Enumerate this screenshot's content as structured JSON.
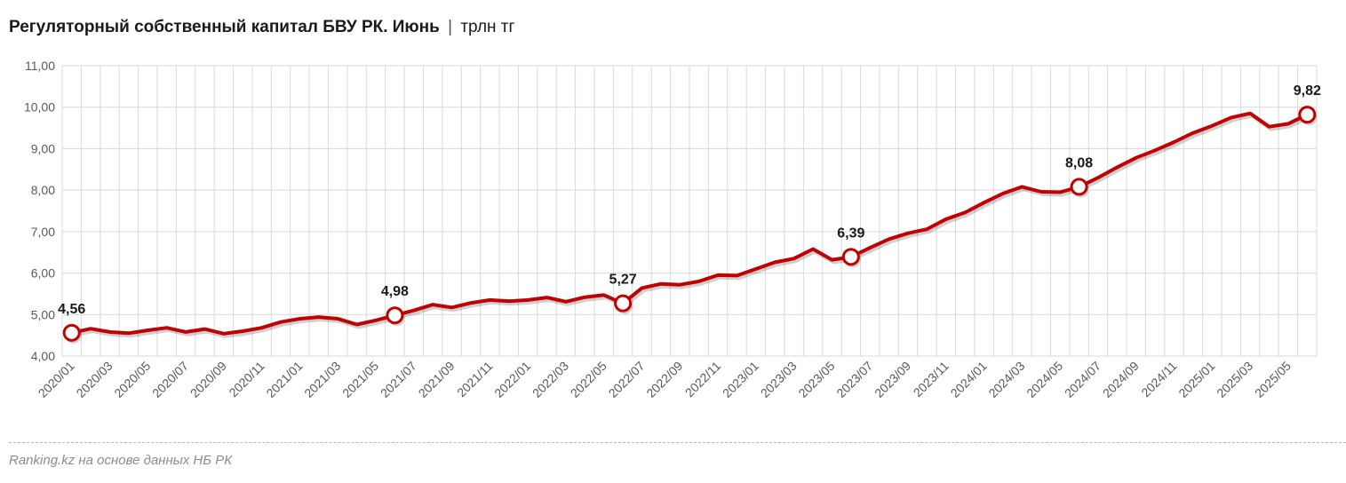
{
  "header": {
    "title": "Регуляторный собственный капитал БВУ РК. Июнь",
    "separator": "|",
    "unit": "трлн тг"
  },
  "footer": {
    "source": "Ranking.kz на основе данных НБ РК"
  },
  "colors": {
    "line": "#c00000",
    "grid": "#d9d9d9",
    "marker_fill": "#ffffff"
  },
  "chart_data": {
    "type": "line",
    "title": "Регуляторный собственный капитал БВУ РК. Июнь",
    "ylim": [
      4.0,
      11.0
    ],
    "y_ticks": [
      "4,00",
      "5,00",
      "6,00",
      "7,00",
      "8,00",
      "9,00",
      "10,00",
      "11,00"
    ],
    "x_tick_labels": [
      "2020/01",
      "2020/03",
      "2020/05",
      "2020/07",
      "2020/09",
      "2020/11",
      "2021/01",
      "2021/03",
      "2021/05",
      "2021/07",
      "2021/09",
      "2021/11",
      "2022/01",
      "2022/03",
      "2022/05",
      "2022/07",
      "2022/09",
      "2022/11",
      "2023/01",
      "2023/03",
      "2023/05",
      "2023/07",
      "2023/09",
      "2023/11",
      "2024/01",
      "2024/03",
      "2024/05",
      "2024/07",
      "2024/09",
      "2024/11",
      "2025/01",
      "2025/03",
      "2025/05"
    ],
    "grid": true,
    "legend": "none",
    "series": [
      {
        "x": [
          "2020/01",
          "2020/02",
          "2020/03",
          "2020/04",
          "2020/05",
          "2020/06",
          "2020/07",
          "2020/08",
          "2020/09",
          "2020/10",
          "2020/11",
          "2020/12",
          "2021/01",
          "2021/02",
          "2021/03",
          "2021/04",
          "2021/05",
          "2021/06",
          "2021/07",
          "2021/08",
          "2021/09",
          "2021/10",
          "2021/11",
          "2021/12",
          "2022/01",
          "2022/02",
          "2022/03",
          "2022/04",
          "2022/05",
          "2022/06",
          "2022/07",
          "2022/08",
          "2022/09",
          "2022/10",
          "2022/11",
          "2022/12",
          "2023/01",
          "2023/02",
          "2023/03",
          "2023/04",
          "2023/05",
          "2023/06",
          "2023/07",
          "2023/08",
          "2023/09",
          "2023/10",
          "2023/11",
          "2023/12",
          "2024/01",
          "2024/02",
          "2024/03",
          "2024/04",
          "2024/05",
          "2024/06",
          "2024/07",
          "2024/08",
          "2024/09",
          "2024/10",
          "2024/11",
          "2024/12",
          "2025/01",
          "2025/02",
          "2025/03",
          "2025/04",
          "2025/05",
          "2025/06"
        ],
        "values": [
          4.56,
          4.66,
          4.58,
          4.55,
          4.62,
          4.68,
          4.58,
          4.65,
          4.54,
          4.6,
          4.68,
          4.82,
          4.9,
          4.94,
          4.9,
          4.76,
          4.86,
          4.98,
          5.1,
          5.24,
          5.17,
          5.28,
          5.35,
          5.32,
          5.35,
          5.41,
          5.31,
          5.42,
          5.47,
          5.27,
          5.64,
          5.74,
          5.72,
          5.8,
          5.95,
          5.94,
          6.1,
          6.26,
          6.35,
          6.58,
          6.32,
          6.39,
          6.61,
          6.82,
          6.96,
          7.06,
          7.3,
          7.46,
          7.7,
          7.92,
          8.08,
          7.96,
          7.95,
          8.08,
          8.3,
          8.55,
          8.78,
          8.96,
          9.16,
          9.38,
          9.55,
          9.75,
          9.85,
          9.53,
          9.6,
          9.82
        ]
      }
    ],
    "data_labels": [
      {
        "x": "2020/01",
        "text": "4,56"
      },
      {
        "x": "2021/06",
        "text": "4,98"
      },
      {
        "x": "2022/06",
        "text": "5,27"
      },
      {
        "x": "2023/06",
        "text": "6,39"
      },
      {
        "x": "2024/06",
        "text": "8,08"
      },
      {
        "x": "2025/06",
        "text": "9,82"
      }
    ]
  }
}
